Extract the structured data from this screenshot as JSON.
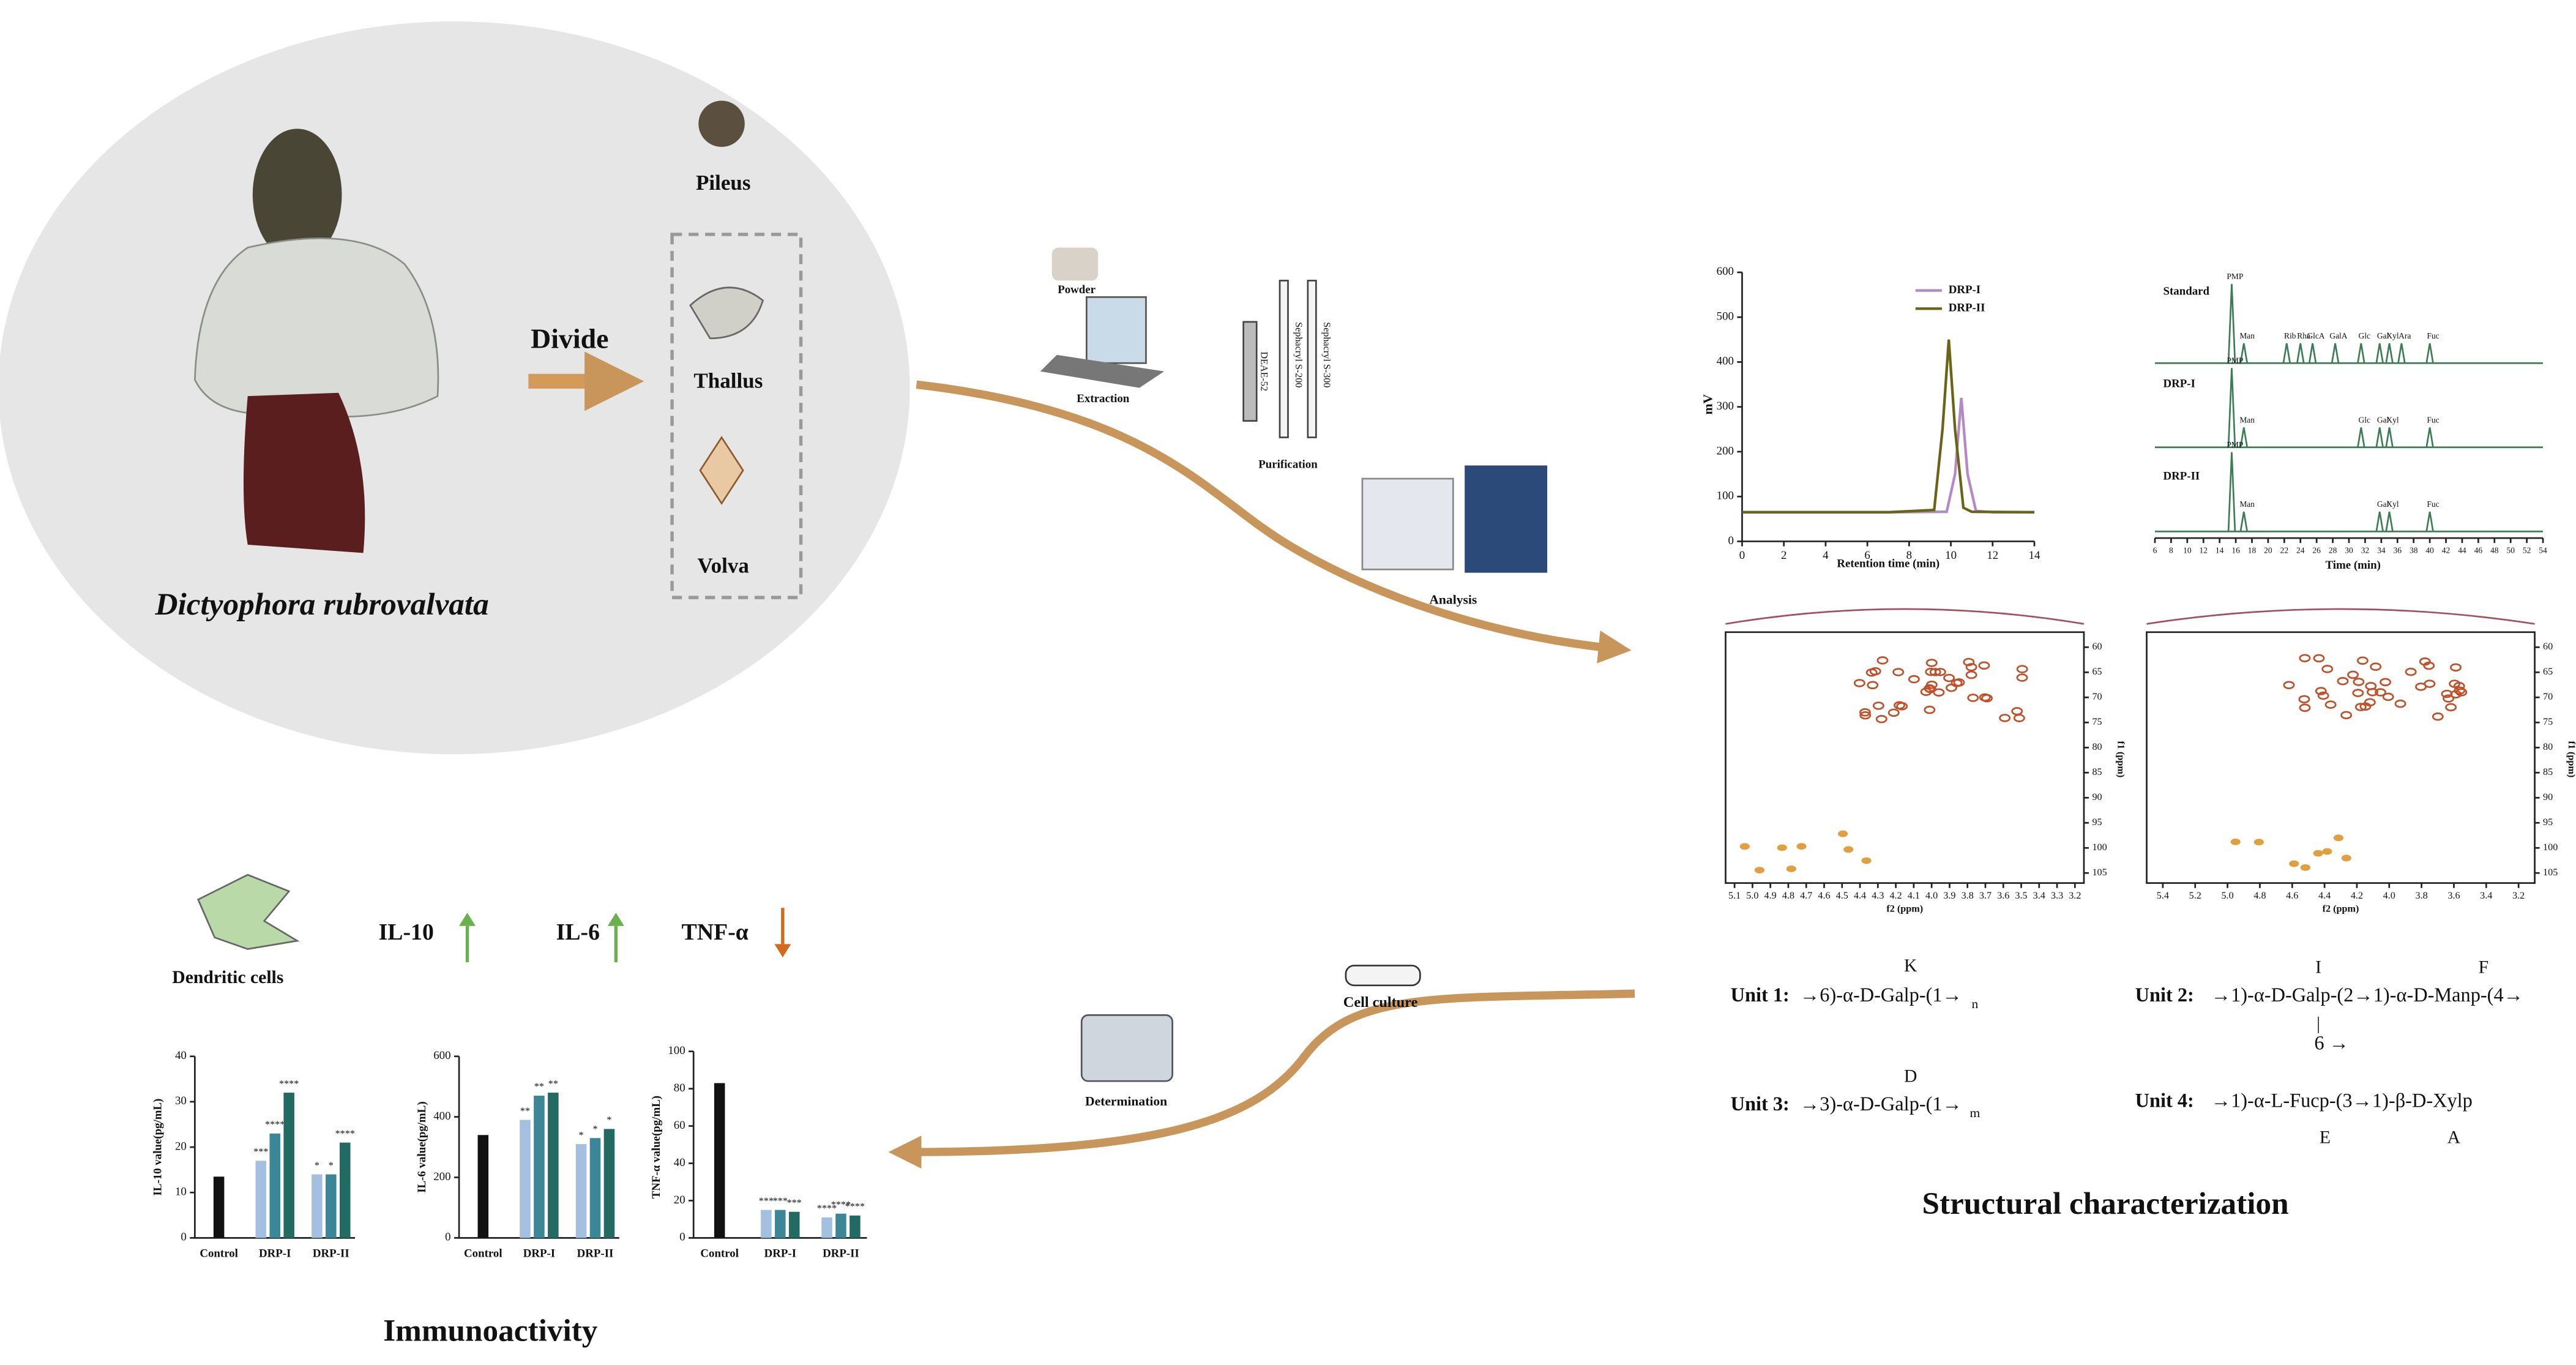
{
  "source": {
    "species": "Dictyophora rubrovalvata",
    "action": "Divide",
    "parts": [
      "Pileus",
      "Thallus",
      "Volva"
    ]
  },
  "process": {
    "powder": "Powder",
    "extraction": "Extraction",
    "columns": [
      "DEAE-52",
      "Sephacryl S-200",
      "Sephacryl S-300"
    ],
    "purification": "Purification",
    "analysis": "Analysis"
  },
  "structure": {
    "title": "Structural characterization",
    "hplc": {
      "type": "line",
      "xlabel": "Retention time (min)",
      "ylabel": "mV",
      "xlim": [
        0,
        14
      ],
      "ylim": [
        0,
        600
      ],
      "xticks": [
        0,
        2,
        4,
        6,
        8,
        10,
        12,
        14
      ],
      "yticks": [
        0,
        100,
        200,
        300,
        400,
        500,
        600
      ],
      "series": [
        {
          "name": "DRP-I",
          "color": "#b58ac4",
          "x": [
            0,
            7,
            9.8,
            10.2,
            10.5,
            10.8,
            11.2,
            12,
            14
          ],
          "values": [
            65,
            65,
            66,
            150,
            320,
            150,
            68,
            65,
            65
          ]
        },
        {
          "name": "DRP-II",
          "color": "#6b6418",
          "x": [
            0,
            7,
            9.2,
            9.6,
            9.9,
            10.2,
            10.6,
            11,
            14
          ],
          "values": [
            65,
            65,
            70,
            250,
            450,
            250,
            75,
            66,
            65
          ]
        }
      ]
    },
    "monosaccharide": {
      "xlabel": "Time (min)",
      "xlim": [
        6,
        54
      ],
      "xticks": [
        6,
        8,
        10,
        12,
        14,
        16,
        18,
        20,
        22,
        24,
        26,
        28,
        30,
        32,
        34,
        36,
        38,
        40,
        42,
        44,
        46,
        48,
        50,
        52,
        54
      ],
      "traces": [
        {
          "name": "Standard",
          "color": "#3c7d55",
          "peaks": [
            {
              "label": "PMP",
              "x": 15.5
            },
            {
              "label": "Man",
              "x": 17
            },
            {
              "label": "Rib",
              "x": 22.3
            },
            {
              "label": "Rha",
              "x": 24
            },
            {
              "label": "GlcA",
              "x": 25.5
            },
            {
              "label": "GalA",
              "x": 28.3
            },
            {
              "label": "Glc",
              "x": 31.5
            },
            {
              "label": "Gal",
              "x": 33.8
            },
            {
              "label": "Xyl",
              "x": 35
            },
            {
              "label": "Ara",
              "x": 36.5
            },
            {
              "label": "Fuc",
              "x": 40
            }
          ]
        },
        {
          "name": "DRP-I",
          "color": "#3c7d55",
          "peaks": [
            {
              "label": "PMP",
              "x": 15.5
            },
            {
              "label": "Man",
              "x": 17
            },
            {
              "label": "Glc",
              "x": 31.5
            },
            {
              "label": "Gal",
              "x": 33.8
            },
            {
              "label": "Xyl",
              "x": 35
            },
            {
              "label": "Fuc",
              "x": 40
            }
          ]
        },
        {
          "name": "DRP-II",
          "color": "#3c7d55",
          "peaks": [
            {
              "label": "PMP",
              "x": 15.5
            },
            {
              "label": "Man",
              "x": 17
            },
            {
              "label": "Gal",
              "x": 33.8
            },
            {
              "label": "Xyl",
              "x": 35
            },
            {
              "label": "Fuc",
              "x": 40
            }
          ]
        }
      ]
    },
    "nmr": [
      {
        "xlabel": "f2 (ppm)",
        "ylabel": "f1 (ppm)",
        "xlim": [
          5.15,
          3.15
        ],
        "ylim": [
          57,
          107
        ],
        "xticks": [
          5.1,
          {
            "value": 5,
            "label": "5.0"
          },
          4.9,
          4.8,
          4.7,
          4.6,
          4.5,
          4.4,
          4.3,
          4.2,
          4.1,
          {
            "value": 4,
            "label": "4.0"
          },
          3.9,
          3.8,
          3.7,
          3.6,
          3.5,
          3.4,
          3.3,
          3.2
        ],
        "yticks": [
          60,
          65,
          70,
          75,
          80,
          85,
          90,
          95,
          100,
          105
        ]
      },
      {
        "xlabel": "f2 (ppm)",
        "ylabel": "f1 (ppm)",
        "xlim": [
          5.5,
          3.1
        ],
        "ylim": [
          57,
          107
        ],
        "xticks": [
          5.4,
          5.2,
          {
            "value": 5,
            "label": "5.0"
          },
          4.8,
          4.6,
          4.4,
          4.2,
          {
            "value": 4,
            "label": "4.0"
          },
          3.8,
          3.6,
          3.4,
          3.2
        ],
        "yticks": [
          60,
          65,
          70,
          75,
          80,
          85,
          90,
          95,
          100,
          105
        ]
      }
    ],
    "units": [
      {
        "name": "Unit 1:",
        "residue": "→6)-α-D-Galp-(1→",
        "repeat": "n",
        "letters": [
          "K"
        ]
      },
      {
        "name": "Unit 2:",
        "residue": "→1)-α-D-Galp-(2→1)-α-D-Manp-(4→",
        "branch_bar": "|",
        "branch": "6 →",
        "letters": [
          "I",
          "F"
        ]
      },
      {
        "name": "Unit 3:",
        "residue": "→3)-α-D-Galp-(1→",
        "repeat": "m",
        "letters": [
          "D"
        ]
      },
      {
        "name": "Unit 4:",
        "residue": "→1)-α-L-Fucp-(3→1)-β-D-Xylp",
        "letters": [
          "E",
          "A"
        ]
      }
    ]
  },
  "immunoactivity": {
    "title": "Immunoactivity",
    "cell": "Dendritic cells",
    "step_culture": "Cell culture",
    "step_determination": "Determination",
    "markers": [
      {
        "name": "IL-10",
        "direction": "up",
        "color": "#6ab04c"
      },
      {
        "name": "IL-6",
        "direction": "up",
        "color": "#6ab04c"
      },
      {
        "name": "TNF-α",
        "direction": "down",
        "color": "#d2691e"
      }
    ],
    "colors": [
      "#111111",
      "#a4c0e0",
      "#3b8797",
      "#216b63"
    ],
    "charts": [
      {
        "type": "bar",
        "ylabel": "IL-10 value(pg/mL)",
        "ylim": [
          0,
          40
        ],
        "yticks": [
          0,
          10,
          20,
          30,
          40
        ],
        "groups": [
          {
            "label": "Control",
            "values": [
              13.5
            ]
          },
          {
            "label": "DRP-I",
            "values": [
              17,
              23,
              32
            ],
            "stars": [
              "***",
              "****",
              "****"
            ]
          },
          {
            "label": "DRP-II",
            "values": [
              14,
              14,
              21
            ],
            "stars": [
              "*",
              "*",
              "****"
            ]
          }
        ]
      },
      {
        "type": "bar",
        "ylabel": "IL-6 value(pg/mL)",
        "ylim": [
          0,
          600
        ],
        "yticks": [
          0,
          200,
          400,
          600
        ],
        "groups": [
          {
            "label": "Control",
            "values": [
              340
            ]
          },
          {
            "label": "DRP-I",
            "values": [
              390,
              470,
              480
            ],
            "stars": [
              "**",
              "**",
              "**"
            ]
          },
          {
            "label": "DRP-II",
            "values": [
              310,
              330,
              360
            ],
            "stars": [
              "*",
              "*",
              "*"
            ]
          }
        ]
      },
      {
        "type": "bar",
        "ylabel": "TNF-α value(pg/mL)",
        "ylim": [
          0,
          100
        ],
        "yticks": [
          0,
          20,
          40,
          60,
          80,
          100
        ],
        "groups": [
          {
            "label": "Control",
            "values": [
              83
            ]
          },
          {
            "label": "DRP-I",
            "values": [
              15,
              15,
              14
            ],
            "stars": [
              "***",
              "***",
              "***"
            ]
          },
          {
            "label": "DRP-II",
            "values": [
              11,
              13,
              12
            ],
            "stars": [
              "****",
              "****",
              "****"
            ]
          }
        ]
      }
    ]
  }
}
